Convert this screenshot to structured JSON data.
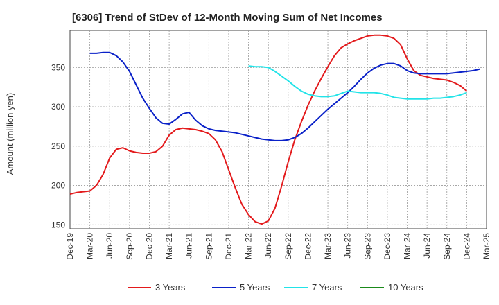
{
  "chart_data": {
    "type": "line",
    "title": "[6306]  Trend of StDev of 12-Month Moving Sum of Net Incomes",
    "xlabel": "",
    "ylabel": "Amount (million yen)",
    "x_ticks": [
      "Dec-19",
      "Mar-20",
      "Jun-20",
      "Sep-20",
      "Dec-20",
      "Mar-21",
      "Jun-21",
      "Sep-21",
      "Dec-21",
      "Mar-22",
      "Jun-22",
      "Sep-22",
      "Dec-22",
      "Mar-23",
      "Jun-23",
      "Sep-23",
      "Dec-23",
      "Mar-24",
      "Jun-24",
      "Sep-24",
      "Dec-24",
      "Mar-25"
    ],
    "y_ticks": [
      150,
      200,
      250,
      300,
      350
    ],
    "ylim": [
      145,
      397
    ],
    "grid": true,
    "legend_position": "bottom",
    "series": [
      {
        "name": "3 Years",
        "color": "#e31a1c",
        "start_index": 0,
        "values": [
          189,
          191,
          192,
          193,
          200,
          214,
          235,
          246,
          248,
          244,
          242,
          241,
          241,
          243,
          250,
          264,
          271,
          273,
          272,
          271,
          269,
          266,
          258,
          243,
          220,
          197,
          176,
          163,
          154,
          151,
          155,
          171,
          199,
          230,
          258,
          281,
          302,
          320,
          336,
          351,
          365,
          375,
          380,
          384,
          387,
          390,
          391,
          391,
          390,
          387,
          379,
          361,
          346,
          340,
          338,
          336,
          335,
          334,
          331,
          327,
          320
        ]
      },
      {
        "name": "5 Years",
        "color": "#0a21c8",
        "start_index": 3,
        "values": [
          368,
          368,
          369,
          369,
          365,
          357,
          345,
          328,
          311,
          298,
          286,
          279,
          278,
          284,
          291,
          293,
          283,
          276,
          272,
          270,
          269,
          268,
          267,
          265,
          263,
          261,
          259,
          258,
          257,
          257,
          258,
          261,
          266,
          273,
          281,
          289,
          297,
          304,
          311,
          318,
          326,
          335,
          343,
          349,
          353,
          355,
          355,
          352,
          346,
          343,
          342,
          342,
          342,
          342,
          342,
          343,
          344,
          345,
          346,
          348
        ]
      },
      {
        "name": "7 Years",
        "color": "#22e3e8",
        "start_index": 27,
        "values": [
          352,
          351,
          351,
          350,
          345,
          339,
          333,
          326,
          320,
          316,
          314,
          313,
          313,
          314,
          317,
          320,
          319,
          318,
          318,
          318,
          317,
          315,
          312,
          311,
          310,
          310,
          310,
          310,
          311,
          311,
          312,
          313,
          315,
          318
        ]
      },
      {
        "name": "10 Years",
        "color": "#1a8a1a",
        "start_index": 0,
        "values": []
      }
    ]
  }
}
